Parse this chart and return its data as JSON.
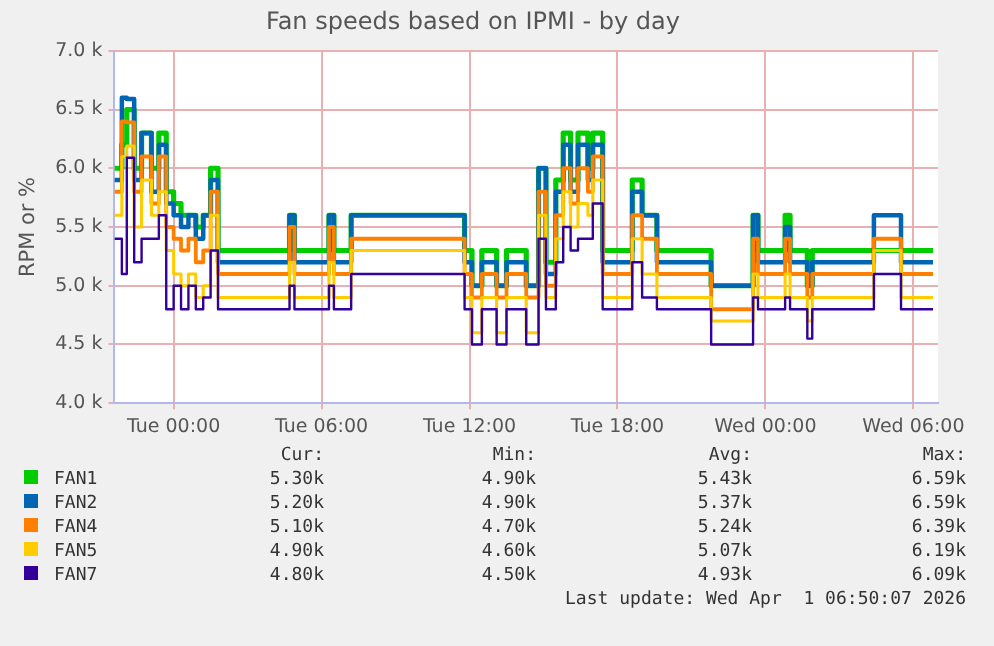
{
  "chart_data": {
    "type": "step",
    "title": "Fan speeds based on IPMI - by day",
    "ylabel": "RPM or %",
    "x": [
      "2026-03-30T21:36",
      "2026-03-30T21:54",
      "2026-03-30T22:06",
      "2026-03-30T22:24",
      "2026-03-30T22:42",
      "2026-03-30T23:06",
      "2026-03-30T23:24",
      "2026-03-30T23:42",
      "2026-03-31T00:00",
      "2026-03-31T00:18",
      "2026-03-31T00:36",
      "2026-03-31T00:54",
      "2026-03-31T01:12",
      "2026-03-31T01:30",
      "2026-03-31T01:48",
      "2026-03-31T04:42",
      "2026-03-31T04:54",
      "2026-03-31T06:18",
      "2026-03-31T06:30",
      "2026-03-31T07:12",
      "2026-03-31T11:48",
      "2026-03-31T12:06",
      "2026-03-31T12:30",
      "2026-03-31T13:06",
      "2026-03-31T13:30",
      "2026-03-31T14:18",
      "2026-03-31T14:48",
      "2026-03-31T15:06",
      "2026-03-31T15:30",
      "2026-03-31T15:48",
      "2026-03-31T16:06",
      "2026-03-31T16:24",
      "2026-03-31T16:48",
      "2026-03-31T17:00",
      "2026-03-31T17:24",
      "2026-03-31T18:36",
      "2026-03-31T19:00",
      "2026-03-31T19:36",
      "2026-03-31T21:48",
      "2026-03-31T23:30",
      "2026-03-31T23:42",
      "2026-04-01T00:48",
      "2026-04-01T01:00",
      "2026-04-01T01:42",
      "2026-04-01T01:54",
      "2026-04-01T04:24",
      "2026-04-01T05:30",
      "2026-04-01T06:48"
    ],
    "series": [
      {
        "name": "FAN1",
        "color": "#00cc00",
        "values": [
          6000,
          6200,
          6500,
          6000,
          6300,
          6000,
          6300,
          5800,
          5700,
          5600,
          5600,
          5500,
          5600,
          6000,
          5300,
          5600,
          5300,
          5600,
          5300,
          5600,
          5300,
          5000,
          5300,
          5000,
          5300,
          5000,
          6000,
          5200,
          5900,
          6300,
          5900,
          6300,
          6000,
          6300,
          5300,
          5900,
          5600,
          5300,
          5000,
          5600,
          5300,
          5600,
          5300,
          5000,
          5300,
          5300,
          5300,
          5300
        ]
      },
      {
        "name": "FAN2",
        "color": "#0066b3",
        "values": [
          5900,
          6600,
          6590,
          5900,
          6300,
          5800,
          6200,
          5700,
          5600,
          5500,
          5600,
          5400,
          5600,
          5900,
          5200,
          5600,
          5200,
          5600,
          5200,
          5600,
          5200,
          5000,
          5200,
          5000,
          5200,
          5000,
          6000,
          5100,
          5800,
          6200,
          5800,
          6200,
          5900,
          6200,
          5200,
          5800,
          5600,
          5200,
          5000,
          5600,
          5200,
          5500,
          5200,
          5000,
          5200,
          5600,
          5200,
          5200
        ]
      },
      {
        "name": "FAN4",
        "color": "#ff8000",
        "values": [
          5800,
          6400,
          6390,
          5800,
          6100,
          5700,
          6100,
          5500,
          5400,
          5300,
          5400,
          5200,
          5300,
          5800,
          5100,
          5500,
          5100,
          5500,
          5100,
          5400,
          5100,
          4900,
          5100,
          4900,
          5100,
          4900,
          5800,
          5000,
          5600,
          6000,
          5700,
          6000,
          5800,
          6100,
          5100,
          5600,
          5400,
          5100,
          4800,
          5400,
          5100,
          5400,
          5100,
          4900,
          5100,
          5400,
          5100,
          5100
        ]
      },
      {
        "name": "FAN5",
        "color": "#ffcc00",
        "values": [
          5600,
          6100,
          6190,
          5500,
          5900,
          5600,
          5800,
          5300,
          5100,
          5000,
          5100,
          4900,
          5000,
          5600,
          4900,
          5200,
          4900,
          5200,
          4900,
          5300,
          4900,
          4600,
          4900,
          4600,
          4900,
          4600,
          5600,
          4900,
          5400,
          5800,
          5500,
          5700,
          5600,
          5900,
          4900,
          5400,
          5100,
          4900,
          4700,
          5100,
          4900,
          5100,
          4900,
          4700,
          4900,
          5300,
          4900,
          4900
        ]
      },
      {
        "name": "FAN7",
        "color": "#330099",
        "values": [
          5400,
          5100,
          6090,
          5200,
          5400,
          5400,
          5600,
          4800,
          5000,
          4800,
          5000,
          4800,
          4900,
          5300,
          4800,
          5000,
          4800,
          5000,
          4800,
          5100,
          4800,
          4500,
          4800,
          4500,
          4800,
          4500,
          5400,
          4800,
          5200,
          5500,
          5300,
          5400,
          5400,
          5700,
          4800,
          5200,
          4900,
          4800,
          4500,
          4900,
          4800,
          4900,
          4800,
          4550,
          4800,
          5100,
          4800,
          4800
        ]
      }
    ],
    "xlim": [
      "2026-03-30T21:36",
      "2026-04-01T07:00"
    ],
    "xticks": [
      {
        "value": "2026-03-31T00:00",
        "label": "Tue 00:00"
      },
      {
        "value": "2026-03-31T06:00",
        "label": "Tue 06:00"
      },
      {
        "value": "2026-03-31T12:00",
        "label": "Tue 12:00"
      },
      {
        "value": "2026-03-31T18:00",
        "label": "Tue 18:00"
      },
      {
        "value": "2026-04-01T00:00",
        "label": "Wed 00:00"
      },
      {
        "value": "2026-04-01T06:00",
        "label": "Wed 06:00"
      }
    ],
    "ylim": [
      4000,
      7000
    ],
    "yticks": [
      {
        "value": 4000,
        "label": "4.0 k"
      },
      {
        "value": 4500,
        "label": "4.5 k"
      },
      {
        "value": 5000,
        "label": "5.0 k"
      },
      {
        "value": 5500,
        "label": "5.5 k"
      },
      {
        "value": 6000,
        "label": "6.0 k"
      },
      {
        "value": 6500,
        "label": "6.5 k"
      },
      {
        "value": 7000,
        "label": "7.0 k"
      }
    ],
    "grid": true,
    "legend": "bottom",
    "marker": "none",
    "line_style": "solid",
    "annotations": [
      "Cur:",
      "Min:",
      "Avg:",
      "Max:",
      "5.30k",
      "4.90k",
      "5.43k",
      "6.59k",
      "5.20k",
      "4.90k",
      "5.37k",
      "6.59k",
      "5.10k",
      "4.70k",
      "5.24k",
      "6.39k",
      "4.90k",
      "4.60k",
      "5.07k",
      "6.19k",
      "4.80k",
      "4.50k",
      "4.93k",
      "6.09k",
      "Last update: Wed Apr  1 06:50:07 2026"
    ]
  }
}
